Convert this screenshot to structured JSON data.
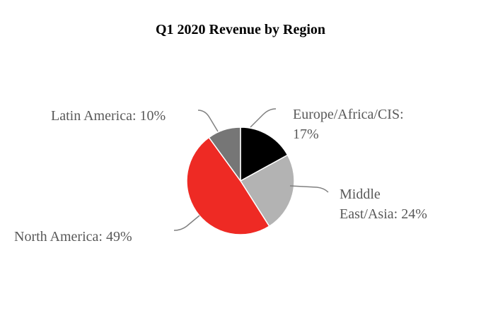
{
  "chart_data": {
    "type": "pie",
    "title": "Q1 2020 Revenue by Region",
    "slices": [
      {
        "name": "Europe/Africa/CIS",
        "value": 17,
        "label_lines": [
          "Europe/Africa/CIS:",
          "17%"
        ],
        "color": "#000000"
      },
      {
        "name": "Middle East/Asia",
        "value": 24,
        "label_lines": [
          "Middle",
          "East/Asia: 24%"
        ],
        "color": "#b3b3b3"
      },
      {
        "name": "North America",
        "value": 49,
        "label_lines": [
          "North America: 49%"
        ],
        "color": "#ee2a24"
      },
      {
        "name": "Latin America",
        "value": 10,
        "label_lines": [
          "Latin America: 10%"
        ],
        "color": "#767676"
      }
    ],
    "start": "top",
    "direction": "clockwise",
    "legend": "none"
  }
}
